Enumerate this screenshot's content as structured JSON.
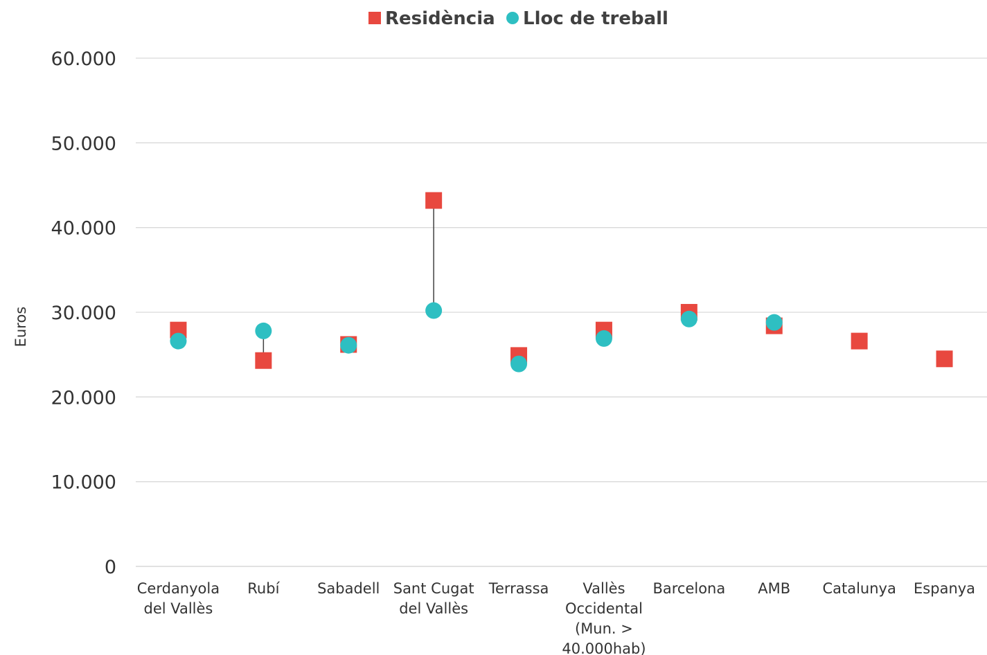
{
  "chart_data": {
    "type": "scatter",
    "title": "",
    "ylabel": "Euros",
    "ylim": [
      0,
      60000
    ],
    "yticks": [
      0,
      10000,
      20000,
      30000,
      40000,
      50000,
      60000
    ],
    "ytick_labels": [
      "0",
      "10.000",
      "20.000",
      "30.000",
      "40.000",
      "50.000",
      "60.000"
    ],
    "categories": [
      [
        "Cerdanyola",
        "del Vallès"
      ],
      [
        "Rubí"
      ],
      [
        "Sabadell"
      ],
      [
        "Sant Cugat",
        "del Vallès"
      ],
      [
        "Terrassa"
      ],
      [
        "Vallès",
        "Occidental",
        "(Mun. >",
        "40.000hab)"
      ],
      [
        "Barcelona"
      ],
      [
        "AMB"
      ],
      [
        "Catalunya"
      ],
      [
        "Espanya"
      ]
    ],
    "series": [
      {
        "name": "Residència",
        "marker": "square",
        "color": "#e8483f",
        "values": [
          27900,
          24300,
          26200,
          43200,
          24900,
          27900,
          30000,
          28400,
          26600,
          24500
        ]
      },
      {
        "name": "Lloc de treball",
        "marker": "circle",
        "color": "#2ebfc2",
        "values": [
          26600,
          27800,
          26100,
          30200,
          23900,
          26900,
          29200,
          28800,
          null,
          null
        ]
      }
    ],
    "grid": true,
    "legend_position": "top-center",
    "connector_lines": true
  }
}
